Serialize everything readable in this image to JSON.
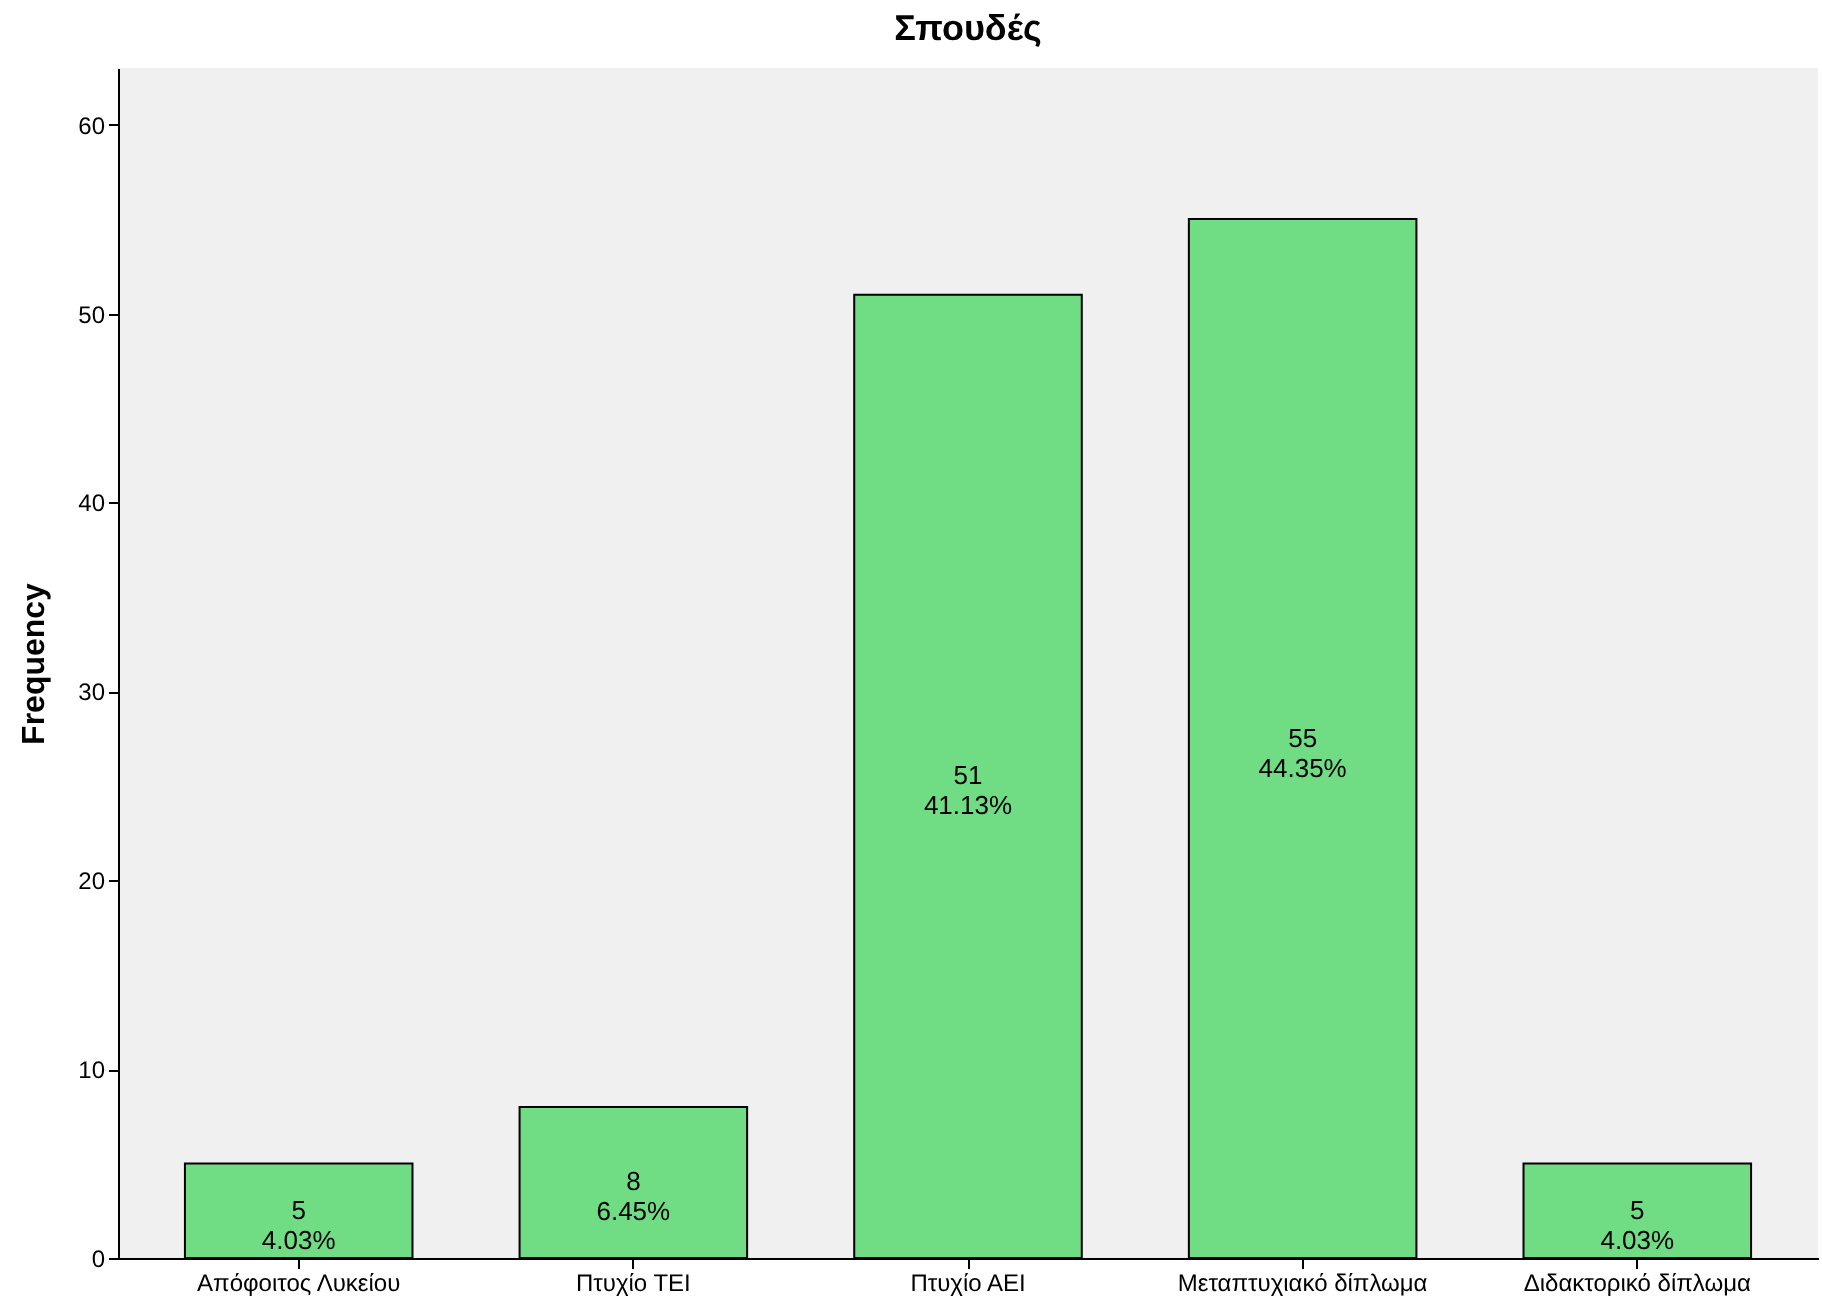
{
  "chart_data": {
    "type": "bar",
    "title": "Σπουδές",
    "ylabel": "Frequency",
    "categories": [
      "Απόφοιτος Λυκείου",
      "Πτυχίο ΤΕΙ",
      "Πτυχίο ΑΕΙ",
      "Μεταπτυχιακό δίπλωμα",
      "Διδακτορικό δίπλωμα"
    ],
    "values": [
      5,
      8,
      51,
      55,
      5
    ],
    "value_labels": [
      "5\n4.03%",
      "8\n6.45%",
      "51\n41.13%",
      "55\n44.35%",
      "5\n4.03%"
    ],
    "color": "#70dc84",
    "ylim": [
      0,
      63
    ],
    "yticks": [
      0,
      10,
      20,
      30,
      40,
      50,
      60
    ],
    "grid": false
  }
}
